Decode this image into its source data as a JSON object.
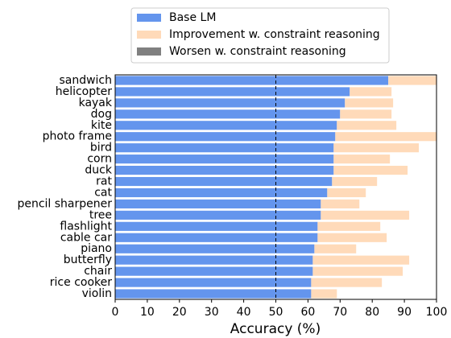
{
  "chart_data": {
    "type": "stacked_barh",
    "xlabel": "Accuracy (%)",
    "categories": [
      "sandwich",
      "helicopter",
      "kayak",
      "dog",
      "kite",
      "photo frame",
      "bird",
      "corn",
      "duck",
      "rat",
      "cat",
      "pencil sharpener",
      "tree",
      "flashlight",
      "cable car",
      "piano",
      "butterfly",
      "chair",
      "rice cooker",
      "violin"
    ],
    "series": [
      {
        "name": "Base LM",
        "color": "#6495ed",
        "values": [
          85,
          73,
          71.5,
          70,
          69,
          68.5,
          68,
          68,
          68,
          67.5,
          66,
          64,
          64,
          63,
          63,
          62,
          61.5,
          61.5,
          61,
          61
        ]
      },
      {
        "name": "Improvement w. constraint reasoning",
        "color": "#ffdab9",
        "values": [
          15,
          13,
          15,
          16,
          18.5,
          31.5,
          26.5,
          17.5,
          23,
          14,
          12,
          12,
          27.5,
          19.5,
          21.5,
          13,
          30,
          28,
          22,
          8
        ]
      },
      {
        "name": "Worsen w. constraint reasoning",
        "color": "#808080",
        "values": [
          0,
          0,
          0,
          0,
          0,
          0,
          0,
          0,
          0,
          0,
          0,
          0,
          0,
          0,
          0,
          0,
          0,
          0,
          0,
          0
        ]
      }
    ],
    "vline": 50,
    "xlim": [
      0,
      100
    ],
    "xticks": [
      0,
      10,
      20,
      30,
      40,
      50,
      60,
      70,
      80,
      90,
      100
    ],
    "legend": "top"
  }
}
